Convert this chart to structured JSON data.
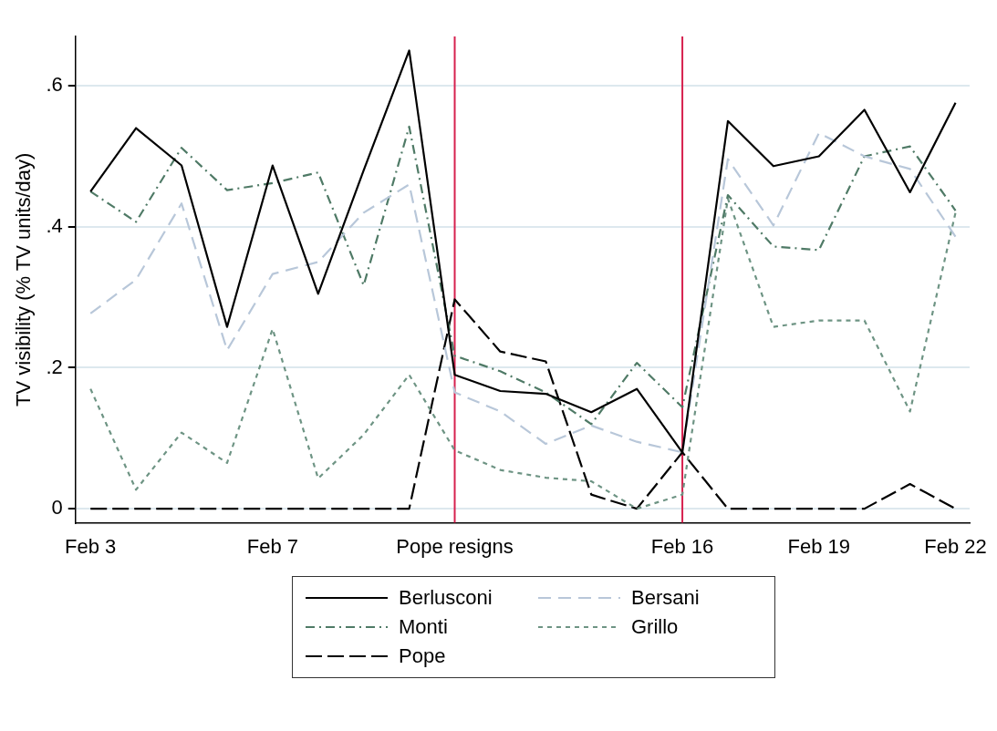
{
  "chart_data": {
    "type": "line",
    "ylabel": "TV visibility (% TV units/day)",
    "categories": [
      "Feb 3",
      null,
      null,
      null,
      "Feb 7",
      null,
      null,
      null,
      "Pope resigns",
      null,
      null,
      null,
      null,
      "Feb 16",
      null,
      null,
      "Feb 19",
      null,
      null,
      "Feb 22"
    ],
    "ylim": [
      -0.02,
      0.67
    ],
    "yticks": [
      {
        "value": 0,
        "label": "0"
      },
      {
        "value": 0.2,
        "label": ".2"
      },
      {
        "value": 0.4,
        "label": ".4"
      },
      {
        "value": 0.6,
        "label": ".6"
      }
    ],
    "grid": "y",
    "legend": "bottom",
    "marker": "none",
    "ref_lines": [
      {
        "axis": "x",
        "value": "Pope resigns",
        "color": "#d6204e"
      },
      {
        "axis": "x",
        "value": "Feb 16",
        "color": "#d6204e"
      }
    ],
    "series": [
      {
        "name": "Berlusconi",
        "color": "#000000",
        "line_style": "solid",
        "values": [
          0.45,
          0.54,
          0.487,
          0.258,
          0.487,
          0.305,
          0.48,
          0.65,
          0.19,
          0.167,
          0.163,
          0.137,
          0.17,
          0.08,
          0.55,
          0.486,
          0.5,
          0.566,
          0.449,
          0.576
        ]
      },
      {
        "name": "Bersani",
        "color": "#b8c7d9",
        "line_style": "dashed",
        "values": [
          0.277,
          0.325,
          0.433,
          0.225,
          0.333,
          0.35,
          0.42,
          0.46,
          0.165,
          0.138,
          0.092,
          0.118,
          0.095,
          0.08,
          0.496,
          0.402,
          0.533,
          0.5,
          0.482,
          0.386
        ]
      },
      {
        "name": "Monti",
        "color": "#4f7a66",
        "line_style": "dashdot",
        "values": [
          0.45,
          0.407,
          0.512,
          0.452,
          0.462,
          0.477,
          0.317,
          0.542,
          0.217,
          0.195,
          0.165,
          0.12,
          0.207,
          0.144,
          0.445,
          0.372,
          0.367,
          0.5,
          0.514,
          0.423
        ]
      },
      {
        "name": "Grillo",
        "color": "#6e9484",
        "line_style": "dotted",
        "values": [
          0.17,
          0.027,
          0.108,
          0.065,
          0.255,
          0.043,
          0.105,
          0.19,
          0.083,
          0.055,
          0.044,
          0.039,
          0.0,
          0.02,
          0.44,
          0.258,
          0.267,
          0.267,
          0.138,
          0.42
        ]
      },
      {
        "name": "Pope",
        "color": "#000000",
        "line_style": "longdash",
        "values": [
          0,
          0,
          0,
          0,
          0,
          0,
          0,
          0,
          0.297,
          0.223,
          0.209,
          0.02,
          0,
          0.08,
          0,
          0,
          0,
          0,
          0.035,
          0
        ]
      }
    ]
  }
}
